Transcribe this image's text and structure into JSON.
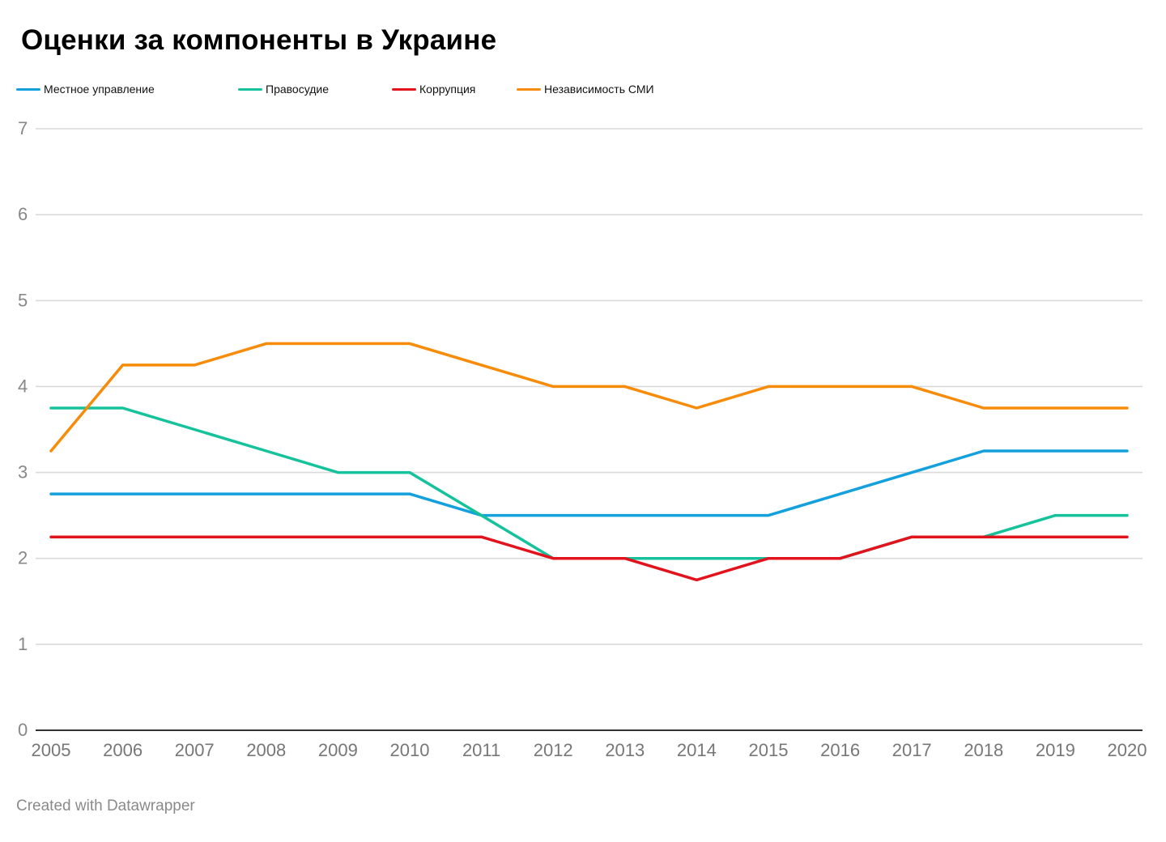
{
  "footer": "Created with Datawrapper",
  "chart_data": {
    "type": "line",
    "title": "Оценки за компоненты в Украине",
    "xlabel": "",
    "ylabel": "",
    "x": [
      2005,
      2006,
      2007,
      2008,
      2009,
      2010,
      2011,
      2012,
      2013,
      2014,
      2015,
      2016,
      2017,
      2018,
      2019,
      2020
    ],
    "ylim": [
      0,
      7
    ],
    "yticks": [
      0,
      1,
      2,
      3,
      4,
      5,
      6,
      7
    ],
    "grid": true,
    "legend_position": "top-left",
    "series": [
      {
        "name": "Местное управление",
        "color": "#14a0dc",
        "values": [
          2.75,
          2.75,
          2.75,
          2.75,
          2.75,
          2.75,
          2.5,
          2.5,
          2.5,
          2.5,
          2.5,
          2.75,
          3.0,
          3.25,
          3.25,
          3.25
        ]
      },
      {
        "name": "Правосудие",
        "color": "#15c29c",
        "values": [
          3.75,
          3.75,
          3.5,
          3.25,
          3.0,
          3.0,
          2.5,
          2.0,
          2.0,
          2.0,
          2.0,
          2.0,
          2.25,
          2.25,
          2.5,
          2.5
        ]
      },
      {
        "name": "Коррупция",
        "color": "#e1141e",
        "values": [
          2.25,
          2.25,
          2.25,
          2.25,
          2.25,
          2.25,
          2.25,
          2.0,
          2.0,
          1.75,
          2.0,
          2.0,
          2.25,
          2.25,
          2.25,
          2.25
        ]
      },
      {
        "name": "Независимость СМИ",
        "color": "#f68c0a",
        "values": [
          3.25,
          4.25,
          4.25,
          4.5,
          4.5,
          4.5,
          4.25,
          4.0,
          4.0,
          3.75,
          4.0,
          4.0,
          4.0,
          3.75,
          3.75,
          3.75
        ]
      }
    ]
  }
}
